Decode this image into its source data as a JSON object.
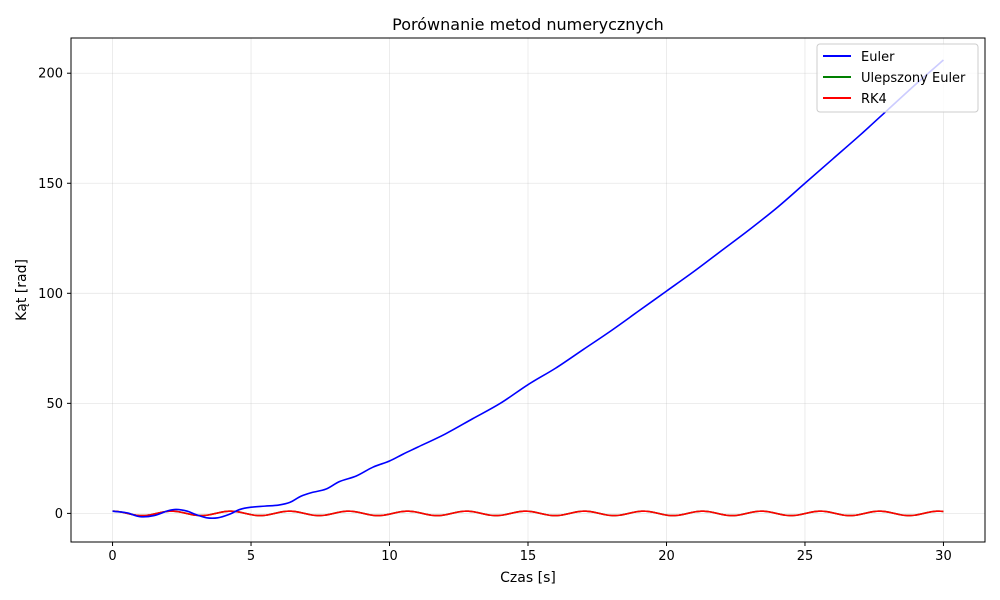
{
  "chart_data": {
    "type": "line",
    "title": "Porównanie metod numerycznych",
    "xlabel": "Czas [s]",
    "ylabel": "Kąt [rad]",
    "xlim": [
      -1.5,
      31.5
    ],
    "ylim": [
      -13,
      216
    ],
    "xticks": [
      0,
      5,
      10,
      15,
      20,
      25,
      30
    ],
    "yticks": [
      0,
      50,
      100,
      150,
      200
    ],
    "grid": true,
    "legend_position": "top-right",
    "series": [
      {
        "name": "Euler",
        "color": "#0000ff",
        "x": [
          0,
          0.5,
          1.0,
          1.5,
          2.0,
          2.3,
          2.7,
          3.0,
          3.4,
          3.8,
          4.2,
          4.6,
          5.0,
          5.5,
          6.0,
          6.4,
          6.8,
          7.2,
          7.7,
          8.2,
          8.8,
          9.4,
          10.0,
          10.5,
          11.0,
          12.0,
          13.0,
          14.0,
          15.0,
          16.0,
          17.0,
          18.0,
          19.0,
          20.0,
          21.0,
          22.0,
          23.0,
          24.0,
          25.0,
          26.0,
          27.0,
          28.0,
          29.0,
          30.0
        ],
        "y": [
          1.0,
          0.3,
          -1.5,
          -1.0,
          1.2,
          1.8,
          1.0,
          -0.5,
          -2.0,
          -2.0,
          -0.5,
          1.8,
          2.8,
          3.3,
          3.8,
          5.0,
          7.8,
          9.5,
          11.0,
          14.5,
          17.0,
          21.0,
          23.8,
          27.0,
          30.0,
          36.0,
          43.0,
          50.0,
          58.5,
          66.0,
          74.5,
          83.0,
          92.0,
          101.0,
          110.0,
          119.5,
          129.0,
          139.0,
          150.0,
          161.0,
          172.0,
          183.5,
          195.0,
          206.0
        ]
      },
      {
        "name": "Ulepszony Euler",
        "color": "#008000",
        "x": "generated: 0 to 30 s",
        "y": "oscillation amplitude ~1 rad, period ~2.1 s"
      },
      {
        "name": "RK4",
        "color": "#ff0000",
        "x": "generated: 0 to 30 s",
        "y": "oscillation amplitude ~1 rad, period ~2.1 s"
      }
    ],
    "oscillation": {
      "amplitude": 1.0,
      "period": 2.13,
      "t_end": 30
    }
  }
}
